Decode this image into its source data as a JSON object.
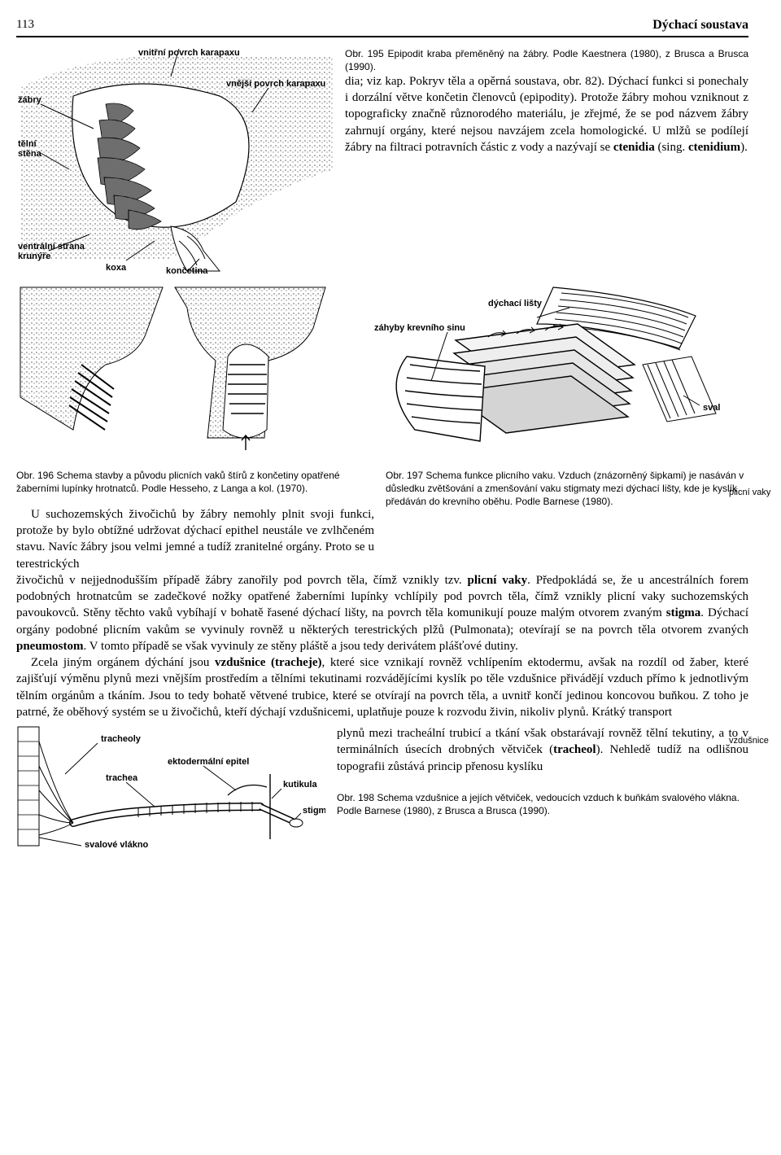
{
  "header": {
    "page_number": "113",
    "chapter_title": "Dýchací soustava"
  },
  "fig195": {
    "caption": "Obr. 195 Epipodit kraba přeměněný na žábry. Podle Kaestnera (1980), z Brusca a Brusca (1990).",
    "labels": {
      "vnitrni_povrch": "vnitřní povrch karapaxu",
      "vnejsi_povrch": "vnější povrch karapaxu",
      "zabry": "žábry",
      "telni_stena": "tělní stěna",
      "ventralni": "ventrální strana krunýře",
      "koxa": "koxa",
      "koncetina": "končetina"
    }
  },
  "para1_html": "dia; viz kap. Pokryv těla a opěrná soustava, obr. 82). Dýchací funkci si ponechaly i dorzální větve končetin členovců (epipodity). Protože žábry mohou vzniknout z topograficky značně různorodého materiálu, je zřejmé, že se pod názvem žábry zahrnují orgány, které nejsou navzájem zcela homologické. U mlžů se podílejí žábry na filtraci potravních částic z vody a nazývají se <b>ctenidia</b> (sing. <b>ctenidium</b>).",
  "fig196": {
    "caption": "Obr. 196 Schema stavby a původu plicních vaků štírů z končetiny opatřené žaberními lupínky hrotnatců. Podle Hesseho, z Langa a kol. (1970).",
    "labels": {
      "dychaci_listy": "dýchací lišty",
      "zahyby": "záhyby krevního sinu",
      "sval": "sval"
    }
  },
  "fig197": {
    "caption": "Obr. 197 Schema funkce plicního vaku. Vzduch (znázorněný šipkami) je nasáván v důsledku zvětšování a zmenšování vaku stigmaty mezi dýchací lišty, kde je kyslík předáván do krevního oběhu. Podle Barnese (1980)."
  },
  "side_notes": {
    "plicni_vaky": "plicní vaky",
    "vzdusnice": "vzdušnice"
  },
  "para2_left": "U suchozemských živočichů by žábry nemohly plnit svoji funkci, protože by bylo obtížné udržovat dýchací epithel neustále ve zvlhčeném stavu. Navíc žábry jsou velmi jemné a tudíž zranitelné orgány. Proto se u terestrických",
  "para2_full_html": "živočichů v nejjednodušším případě žábry zanořily pod povrch těla, čímž vznikly tzv. <b>plicní vaky</b>. Předpokládá se, že u ancestrálních forem podobných hrotnatcům se zadečkové nožky opatřené žaberními lupínky vchlípily pod povrch těla, čímž vznikly plicní vaky suchozemských pavoukovců. Stěny těchto vaků vybíhají v bohatě řasené dýchací lišty, na povrch těla komunikují pouze malým otvorem zvaným <b>stigma</b>. Dýchací orgány podobné plicním vakům se vyvinuly rovněž u některých terestrických plžů (Pulmonata); otevírají se na povrch těla otvorem zvaných <b>pneumostom</b>. V tomto případě se však vyvinuly ze stěny pláště a jsou tedy derivátem plášťové dutiny.",
  "para3_html": "Zcela jiným orgánem dýchání jsou <b>vzdušnice (tracheje)</b>, které sice vznikají rovněž vchlípením ektodermu, avšak na rozdíl od žaber, které zajišťují výměnu plynů mezi vnějším prostředím a tělními tekutinami rozvádějícími kyslík po těle vzdušnice přivádějí vzduch přímo k jednotlivým tělním orgánům a tkáním. Jsou to tedy bohatě větvené trubice, které se otvírají na povrch těla, a uvnitř končí jedinou koncovou buňkou. Z toho je patrné, že oběhový systém se u živočichů, kteří dýchají vzdušnicemi, uplatňuje pouze k rozvodu živin, nikoliv plynů. Krátký transport",
  "para3_right": "plynů mezi tracheální trubicí a tkání však obstarávají rovněž tělní tekutiny, a to v terminálních úsecích drobných větviček (<b>tracheol</b>). Nehledě tudíž na odlišnou topografii zůstává princip přenosu  kyslíku",
  "fig198": {
    "caption": "Obr. 198 Schema vzdušnice a jejích větviček, vedoucích vzduch k buňkám svalového vlákna. Podle Barnese (1980), z Brusca a Brusca (1990).",
    "labels": {
      "tracheoly": "tracheoly",
      "ekto": "ektodermální epitel",
      "trachea": "trachea",
      "kutikula": "kutikula",
      "stigma": "stigma",
      "svalove": "svalové vlákno"
    }
  }
}
